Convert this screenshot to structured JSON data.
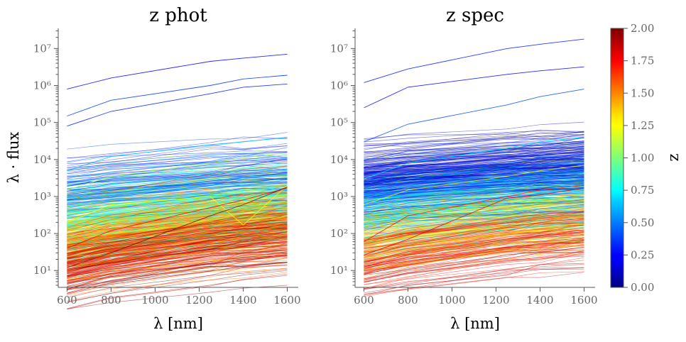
{
  "chart_data": [
    {
      "type": "line",
      "title": "z phot",
      "xlabel": "λ [nm]",
      "ylabel": "λ · flux",
      "yscale": "log",
      "xlim": [
        560,
        1650
      ],
      "ylim": [
        3.5,
        35000000
      ],
      "x": [
        600,
        800,
        1250,
        1400,
        1600
      ],
      "x_ticks": [
        600,
        800,
        1000,
        1200,
        1400,
        1600
      ],
      "y_ticks": [
        "10¹",
        "10²",
        "10³",
        "10⁴",
        "10⁵",
        "10⁶",
        "10⁷"
      ],
      "y_tick_values": [
        10,
        100,
        1000,
        10000,
        100000,
        1000000,
        10000000
      ],
      "line_count": 650,
      "series": [
        {
          "z": 0.25,
          "values": [
            800000,
            1600000,
            4500000,
            5500000,
            7000000
          ]
        },
        {
          "z": 0.35,
          "values": [
            150000,
            400000,
            1000000,
            1500000,
            1900000
          ]
        },
        {
          "z": 0.3,
          "values": [
            80000,
            200000,
            600000,
            900000,
            1100000
          ]
        },
        {
          "z": 0.6,
          "values": [
            5000,
            12000,
            25000,
            30000,
            40000
          ]
        },
        {
          "z": 1.1,
          "values": [
            1500,
            3500,
            8000,
            11000,
            15000
          ]
        },
        {
          "z": 1.25,
          "values": [
            200,
            600,
            1000,
            170,
            2000
          ]
        },
        {
          "z": 1.8,
          "values": [
            40,
            120,
            500,
            800,
            1700
          ]
        },
        {
          "z": 2.0,
          "values": [
            12,
            30,
            300,
            600,
            1800
          ]
        }
      ]
    },
    {
      "type": "line",
      "title": "z spec",
      "xlabel": "λ [nm]",
      "ylabel": "",
      "yscale": "log",
      "xlim": [
        560,
        1650
      ],
      "ylim": [
        3.5,
        35000000
      ],
      "x": [
        600,
        800,
        1250,
        1400,
        1600
      ],
      "x_ticks": [
        600,
        800,
        1000,
        1200,
        1400,
        1600
      ],
      "y_ticks": [
        "10¹",
        "10²",
        "10³",
        "10⁴",
        "10⁵",
        "10⁶",
        "10⁷"
      ],
      "y_tick_values": [
        10,
        100,
        1000,
        10000,
        100000,
        1000000,
        10000000
      ],
      "line_count": 650,
      "series": [
        {
          "z": 0.3,
          "values": [
            1200000,
            2800000,
            10000000,
            13000000,
            18000000
          ]
        },
        {
          "z": 0.25,
          "values": [
            250000,
            900000,
            2000000,
            2500000,
            3200000
          ]
        },
        {
          "z": 0.4,
          "values": [
            30000,
            90000,
            300000,
            500000,
            800000
          ]
        },
        {
          "z": 0.7,
          "values": [
            3000,
            8000,
            20000,
            30000,
            40000
          ]
        },
        {
          "z": 1.2,
          "values": [
            600,
            1500,
            3500,
            5000,
            7000
          ]
        },
        {
          "z": 1.7,
          "values": [
            60,
            300,
            1000,
            1500,
            2000
          ]
        },
        {
          "z": 1.8,
          "values": [
            26,
            70,
            900,
            1100,
            1700
          ]
        }
      ]
    }
  ],
  "colorbar": {
    "label": "z",
    "min": 0.0,
    "max": 2.0,
    "colormap": "jet",
    "ticks": [
      "0.00",
      "0.25",
      "0.50",
      "0.75",
      "1.00",
      "1.25",
      "1.50",
      "1.75",
      "2.00"
    ],
    "tick_values": [
      0,
      0.25,
      0.5,
      0.75,
      1.0,
      1.25,
      1.5,
      1.75,
      2.0
    ]
  }
}
